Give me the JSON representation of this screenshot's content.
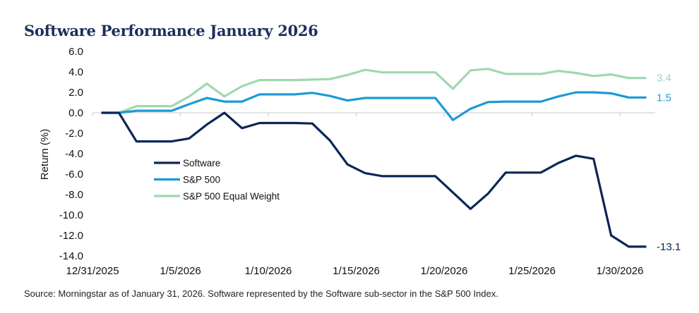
{
  "chart_data": {
    "type": "line",
    "title": "Software Performance January 2026",
    "xlabel": "",
    "ylabel": "Return (%)",
    "ylim": [
      -14,
      6
    ],
    "yticks": [
      "6.0",
      "4.0",
      "2.0",
      "0.0",
      "-2.0",
      "-4.0",
      "-6.0",
      "-8.0",
      "-10.0",
      "-12.0",
      "-14.0"
    ],
    "xtick_labels": [
      "12/31/2025",
      "1/5/2026",
      "1/10/2026",
      "1/15/2026",
      "1/20/2026",
      "1/25/2026",
      "1/30/2026"
    ],
    "x": [
      "12/31/2025",
      "1/1/2026",
      "1/2/2026",
      "1/3/2026",
      "1/4/2026",
      "1/5/2026",
      "1/6/2026",
      "1/7/2026",
      "1/8/2026",
      "1/9/2026",
      "1/10/2026",
      "1/11/2026",
      "1/12/2026",
      "1/13/2026",
      "1/14/2026",
      "1/15/2026",
      "1/16/2026",
      "1/17/2026",
      "1/18/2026",
      "1/19/2026",
      "1/20/2026",
      "1/21/2026",
      "1/22/2026",
      "1/23/2026",
      "1/24/2026",
      "1/25/2026",
      "1/26/2026",
      "1/27/2026",
      "1/28/2026",
      "1/29/2026",
      "1/30/2026",
      "1/31/2026"
    ],
    "grid": false,
    "legend": "center-left",
    "series": [
      {
        "name": "Software",
        "color": "#0c2657",
        "end_label": "-13.1",
        "values": [
          0,
          0,
          -2.8,
          -2.8,
          -2.8,
          -2.5,
          -1.15,
          0,
          -1.5,
          -1.0,
          -1.0,
          -1.0,
          -1.05,
          -2.7,
          -5.05,
          -5.9,
          -6.2,
          -6.2,
          -6.2,
          -6.2,
          -7.8,
          -9.4,
          -7.9,
          -5.85,
          -5.85,
          -5.85,
          -4.9,
          -4.2,
          -4.5,
          -12.0,
          -13.1,
          -13.1
        ]
      },
      {
        "name": "S&P 500",
        "color": "#1b9ad6",
        "end_label": "1.5",
        "values": [
          0,
          0,
          0.2,
          0.2,
          0.2,
          0.85,
          1.45,
          1.1,
          1.1,
          1.8,
          1.8,
          1.8,
          1.95,
          1.65,
          1.2,
          1.45,
          1.45,
          1.45,
          1.45,
          1.45,
          -0.7,
          0.4,
          1.05,
          1.1,
          1.1,
          1.1,
          1.6,
          2.0,
          2.0,
          1.9,
          1.5,
          1.5
        ]
      },
      {
        "name": "S&P 500 Equal Weight",
        "color": "#9fd8b0",
        "end_label": "3.4",
        "values": [
          0,
          0,
          0.65,
          0.65,
          0.65,
          1.6,
          2.85,
          1.6,
          2.6,
          3.2,
          3.2,
          3.2,
          3.25,
          3.3,
          3.7,
          4.2,
          3.95,
          3.95,
          3.95,
          3.95,
          2.35,
          4.15,
          4.3,
          3.8,
          3.8,
          3.8,
          4.1,
          3.9,
          3.6,
          3.75,
          3.4,
          3.4
        ]
      }
    ]
  },
  "source": "Source: Morningstar as of January 31, 2026. Software represented by the Software sub-sector in the S&P 500 Index."
}
